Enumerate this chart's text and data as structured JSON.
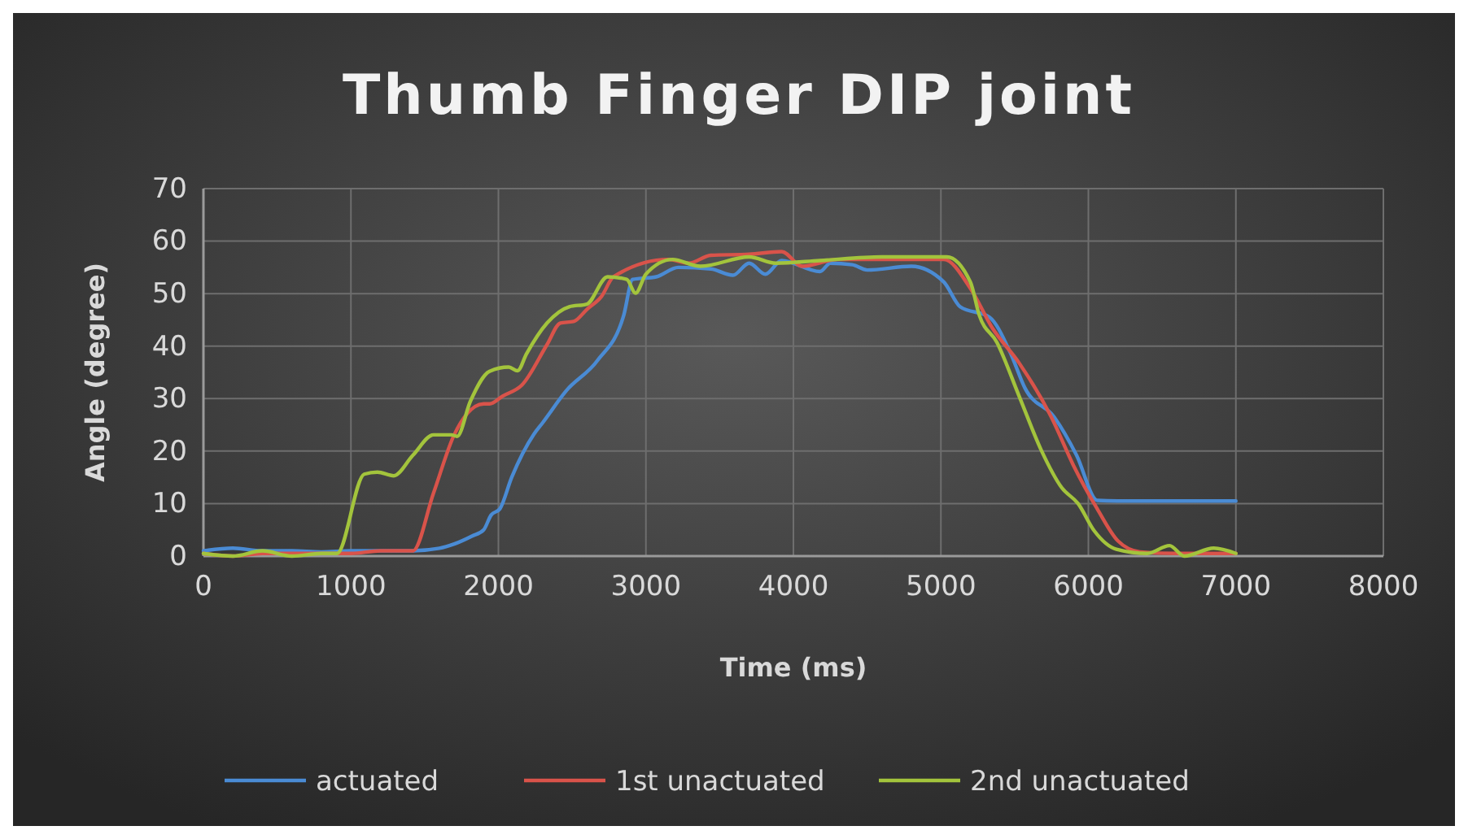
{
  "chart_data": {
    "type": "line",
    "title": "Thumb Finger DIP joint",
    "xlabel": "Time (ms)",
    "ylabel": "Angle (degree)",
    "xlim": [
      0,
      8000
    ],
    "xticks": [
      0,
      1000,
      2000,
      3000,
      4000,
      5000,
      6000,
      7000,
      8000
    ],
    "ylim": [
      0,
      70
    ],
    "yticks": [
      0,
      10,
      20,
      30,
      40,
      50,
      60,
      70
    ],
    "grid": true,
    "legend": "bottom",
    "marker": "none",
    "line_style": "solid",
    "series": [
      {
        "name": "actuated",
        "color": "#4a8bd4",
        "x": [
          0,
          200,
          400,
          600,
          800,
          1000,
          1200,
          1400,
          1600,
          1700,
          1820,
          1900,
          1950,
          2010,
          2090,
          2240,
          2300,
          2460,
          2670,
          2850,
          2910,
          3070,
          3220,
          3440,
          3590,
          3700,
          3810,
          3920,
          4180,
          4250,
          4400,
          4500,
          4800,
          5020,
          5130,
          5330,
          5470,
          5570,
          5770,
          5920,
          6060,
          6200,
          6400,
          6600,
          6800,
          7000
        ],
        "values": [
          1,
          1.5,
          1,
          1,
          0.8,
          1,
          1,
          1,
          1.5,
          2.3,
          3.8,
          5,
          7.8,
          9,
          15,
          23.2,
          25.4,
          31.5,
          37.2,
          45.9,
          52.7,
          53.2,
          55,
          54.7,
          53.5,
          55.8,
          53.7,
          56.3,
          54.2,
          55.8,
          55.5,
          54.5,
          55.2,
          52.2,
          47.5,
          45.5,
          38.8,
          32,
          26.4,
          19.2,
          10.6,
          10.5,
          10.5,
          10.5,
          10.5,
          10.5
        ]
      },
      {
        "name": "1st unactuated",
        "color": "#d9534a",
        "x": [
          0,
          200,
          400,
          600,
          800,
          1000,
          1200,
          1420,
          1560,
          1700,
          1900,
          1940,
          2030,
          2160,
          2330,
          2420,
          2510,
          2600,
          2700,
          2780,
          3150,
          3290,
          3440,
          3700,
          3920,
          4060,
          4300,
          4600,
          5020,
          5200,
          5350,
          5530,
          5750,
          5900,
          6060,
          6200,
          6350,
          6600,
          6800,
          7000
        ],
        "values": [
          0.5,
          0,
          0.5,
          0.5,
          0.5,
          0.5,
          1,
          1,
          12,
          23.1,
          29,
          29,
          30.5,
          32.6,
          40.3,
          44.4,
          44.7,
          47,
          49.5,
          53.2,
          56.5,
          55.8,
          57.3,
          57.5,
          58,
          55.2,
          56.5,
          56.5,
          56.5,
          51,
          43.4,
          36.8,
          26.4,
          17.2,
          9,
          2.9,
          0.8,
          0.5,
          0.5,
          0.5
        ]
      },
      {
        "name": "2nd unactuated",
        "color": "#a3c43c",
        "x": [
          0,
          200,
          400,
          600,
          800,
          905,
          1090,
          1180,
          1290,
          1420,
          1560,
          1680,
          1720,
          1810,
          1940,
          2070,
          2130,
          2190,
          2330,
          2480,
          2600,
          2740,
          2870,
          2930,
          3000,
          3180,
          3370,
          3700,
          3880,
          4180,
          4600,
          5040,
          5200,
          5260,
          5380,
          5530,
          5680,
          5820,
          5930,
          6040,
          6190,
          6400,
          6550,
          6650,
          6850,
          7000
        ],
        "values": [
          0.5,
          0,
          1,
          0,
          0.5,
          0.5,
          15.6,
          16,
          15.3,
          19.2,
          23.1,
          23.1,
          22.8,
          29.5,
          35.2,
          36,
          35.3,
          38.5,
          44.4,
          47.5,
          48,
          53.2,
          52.7,
          50.1,
          53.7,
          56.5,
          55.2,
          57,
          55.8,
          56.3,
          57,
          57,
          52.2,
          45.9,
          40.7,
          30.5,
          20.2,
          13,
          10,
          4.8,
          1.3,
          0.5,
          2,
          0,
          1.5,
          0.5
        ]
      }
    ]
  }
}
